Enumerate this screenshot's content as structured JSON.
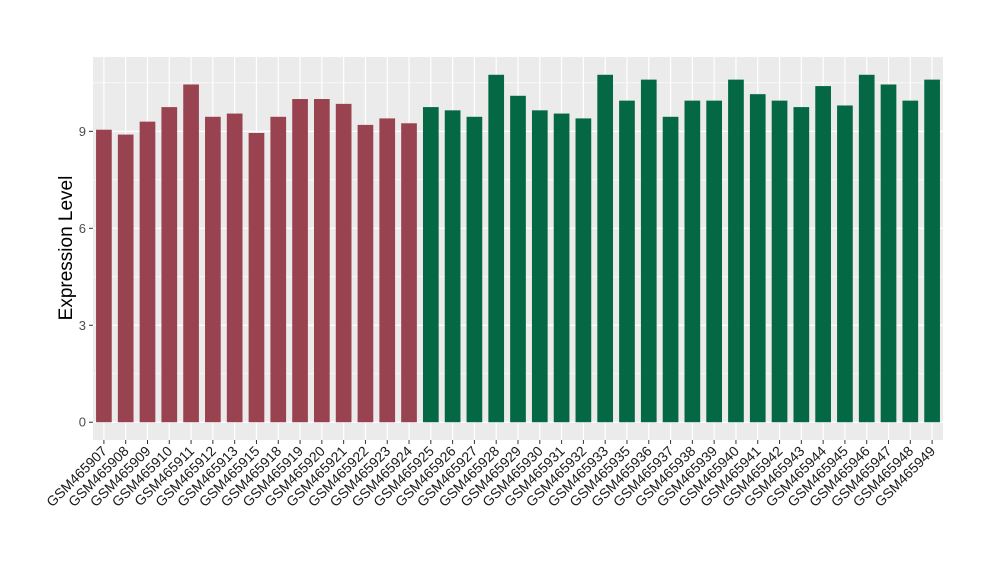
{
  "chart_data": {
    "type": "bar",
    "ylabel": "Expression Level",
    "xlabel": "",
    "ylim": [
      -0.55,
      11.3
    ],
    "yticks": [
      0,
      3,
      6,
      9
    ],
    "grid": true,
    "legend": "none",
    "colors": {
      "group1": "#9a4350",
      "group2": "#036843",
      "panel": "#ebebeb",
      "gridline": "#ffffff"
    },
    "categories": [
      "GSM465907",
      "GSM465908",
      "GSM465909",
      "GSM465910",
      "GSM465911",
      "GSM465912",
      "GSM465913",
      "GSM465915",
      "GSM465918",
      "GSM465919",
      "GSM465920",
      "GSM465921",
      "GSM465922",
      "GSM465923",
      "GSM465924",
      "GSM465925",
      "GSM465926",
      "GSM465927",
      "GSM465928",
      "GSM465929",
      "GSM465930",
      "GSM465931",
      "GSM465932",
      "GSM465933",
      "GSM465935",
      "GSM465936",
      "GSM465937",
      "GSM465938",
      "GSM465939",
      "GSM465940",
      "GSM465941",
      "GSM465942",
      "GSM465943",
      "GSM465944",
      "GSM465945",
      "GSM465946",
      "GSM465947",
      "GSM465948",
      "GSM465949"
    ],
    "values": [
      9.05,
      8.9,
      9.3,
      9.75,
      10.45,
      9.45,
      9.55,
      8.95,
      9.45,
      10.0,
      10.0,
      9.85,
      9.2,
      9.4,
      9.25,
      9.75,
      9.65,
      9.45,
      10.75,
      10.1,
      9.65,
      9.55,
      9.4,
      10.75,
      9.95,
      10.6,
      9.45,
      9.95,
      9.95,
      10.6,
      10.15,
      9.95,
      9.75,
      10.4,
      9.8,
      10.75,
      10.45,
      9.95,
      10.6
    ],
    "groups": [
      1,
      1,
      1,
      1,
      1,
      1,
      1,
      1,
      1,
      1,
      1,
      1,
      1,
      1,
      1,
      2,
      2,
      2,
      2,
      2,
      2,
      2,
      2,
      2,
      2,
      2,
      2,
      2,
      2,
      2,
      2,
      2,
      2,
      2,
      2,
      2,
      2,
      2,
      2
    ]
  }
}
